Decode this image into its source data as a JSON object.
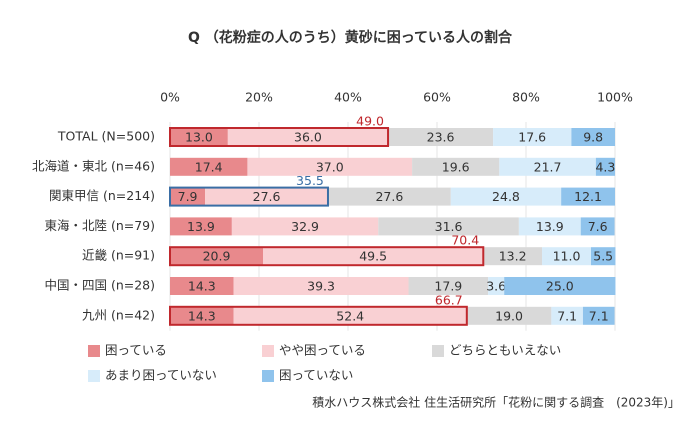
{
  "chart_data": {
    "type": "bar",
    "orientation": "horizontal",
    "stacked": true,
    "title": "Q （花粉症の人のうち）黄砂に困っている人の割合",
    "categories": [
      "TOTAL (N=500)",
      "北海道・東北 (n=46)",
      "関東甲信 (n=214)",
      "東海・北陸 (n=79)",
      "近畿 (n=91)",
      "中国・四国 (n=28)",
      "九州 (n=42)"
    ],
    "series": [
      {
        "name": "困っている",
        "color": "#e8898c",
        "values": [
          13.0,
          17.4,
          7.9,
          13.9,
          20.9,
          14.3,
          14.3
        ],
        "value_labels": [
          "13.0",
          "17.4",
          "7.9",
          "13.9",
          "20.9",
          "14.3",
          "14.3"
        ]
      },
      {
        "name": "やや困っている",
        "color": "#f9d0d3",
        "values": [
          36.0,
          37.0,
          27.6,
          32.9,
          49.5,
          39.3,
          52.4
        ],
        "value_labels": [
          "36.0",
          "37.0",
          "27.6",
          "32.9",
          "49.5",
          "39.3",
          "52.4"
        ]
      },
      {
        "name": "どちらともいえない",
        "color": "#d9d9d9",
        "values": [
          23.6,
          19.6,
          27.6,
          31.6,
          13.2,
          17.9,
          19.0
        ],
        "value_labels": [
          "23.6",
          "19.6",
          "27.6",
          "31.6",
          "13.2",
          "17.9",
          "19.0"
        ]
      },
      {
        "name": "あまり困っていない",
        "color": "#d7ecfa",
        "values": [
          17.6,
          21.7,
          24.8,
          13.9,
          11.0,
          3.6,
          7.1
        ],
        "value_labels": [
          "17.6",
          "21.7",
          "24.8",
          "13.9",
          "11.0",
          "3.6",
          "7.1"
        ]
      },
      {
        "name": "困っていない",
        "color": "#8fc3ec",
        "values": [
          9.8,
          4.3,
          12.1,
          7.6,
          5.5,
          25.0,
          7.1
        ],
        "value_labels": [
          "9.8",
          "4.3",
          "12.1",
          "7.6",
          "5.5",
          "25.0",
          "7.1"
        ]
      }
    ],
    "totals": {
      "values": [
        49.0,
        null,
        35.5,
        null,
        70.4,
        null,
        66.7
      ],
      "value_labels": [
        "49.0",
        null,
        "35.5",
        null,
        "70.4",
        null,
        "66.7"
      ],
      "colors": [
        "#c0282d",
        null,
        "#3a6ea5",
        null,
        "#c0282d",
        null,
        "#c0282d"
      ]
    },
    "xlim": [
      0,
      100
    ],
    "xticks": [
      {
        "value": 0,
        "label": "0%"
      },
      {
        "value": 20,
        "label": "20%"
      },
      {
        "value": 40,
        "label": "40%"
      },
      {
        "value": 60,
        "label": "60%"
      },
      {
        "value": 80,
        "label": "80%"
      },
      {
        "value": 100,
        "label": "100%"
      }
    ],
    "grid": true,
    "source": "積水ハウス株式会社 住生活研究所「花粉に関する調査　(2023年)」"
  }
}
